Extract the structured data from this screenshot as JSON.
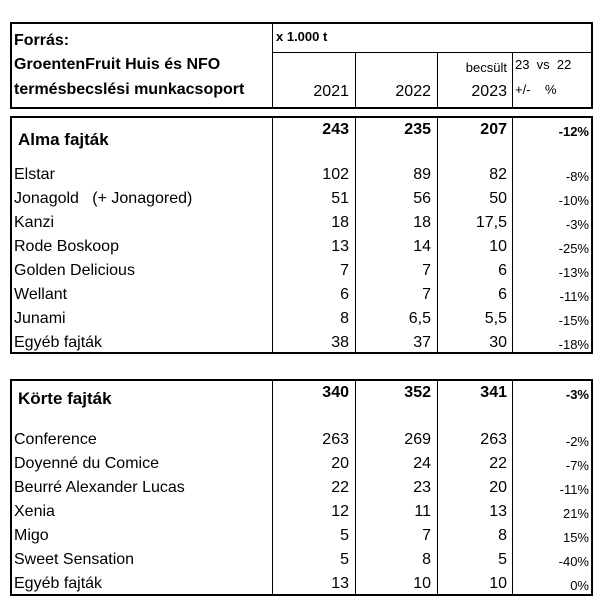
{
  "header": {
    "source_lines": [
      "Forrás:",
      "GroentenFruit Huis és NFO",
      "termésbecslési munkacsoport"
    ],
    "unit": "x 1.000 t",
    "years": [
      "2021",
      "2022",
      "2023"
    ],
    "estimated_label": "becsült",
    "compare_label": "23  vs  22",
    "change_label": "+/-    %"
  },
  "sections": [
    {
      "title": "Alma fajták",
      "totals": [
        "243",
        "235",
        "207",
        "-12%"
      ],
      "rows": [
        {
          "name": "Elstar",
          "v": [
            "102",
            "89",
            "82",
            "-8%"
          ]
        },
        {
          "name": "Jonagold   (+ Jonagored)",
          "v": [
            "51",
            "56",
            "50",
            "-10%"
          ]
        },
        {
          "name": "Kanzi",
          "v": [
            "18",
            "18",
            "17,5",
            "-3%"
          ]
        },
        {
          "name": "Rode Boskoop",
          "v": [
            "13",
            "14",
            "10",
            "-25%"
          ]
        },
        {
          "name": "Golden Delicious",
          "v": [
            "7",
            "7",
            "6",
            "-13%"
          ]
        },
        {
          "name": "Wellant",
          "v": [
            "6",
            "7",
            "6",
            "-11%"
          ]
        },
        {
          "name": "Junami",
          "v": [
            "8",
            "6,5",
            "5,5",
            "-15%"
          ]
        },
        {
          "name": "Egyéb fajták",
          "v": [
            "38",
            "37",
            "30",
            "-18%"
          ]
        }
      ]
    },
    {
      "title": "Körte fajták",
      "totals": [
        "340",
        "352",
        "341",
        "-3%"
      ],
      "rows": [
        {
          "name": "Conference",
          "v": [
            "263",
            "269",
            "263",
            "-2%"
          ]
        },
        {
          "name": "Doyenné du Comice",
          "v": [
            "20",
            "24",
            "22",
            "-7%"
          ]
        },
        {
          "name": "Beurré Alexander Lucas",
          "v": [
            "22",
            "23",
            "20",
            "-11%"
          ]
        },
        {
          "name": "Xenia",
          "v": [
            "12",
            "11",
            "13",
            "21%"
          ]
        },
        {
          "name": "Migo",
          "v": [
            "5",
            "7",
            "8",
            "15%"
          ]
        },
        {
          "name": "Sweet Sensation",
          "v": [
            "5",
            "8",
            "5",
            "-40%"
          ]
        },
        {
          "name": "Egyéb fajták",
          "v": [
            "13",
            "10",
            "10",
            "0%"
          ]
        }
      ]
    }
  ]
}
